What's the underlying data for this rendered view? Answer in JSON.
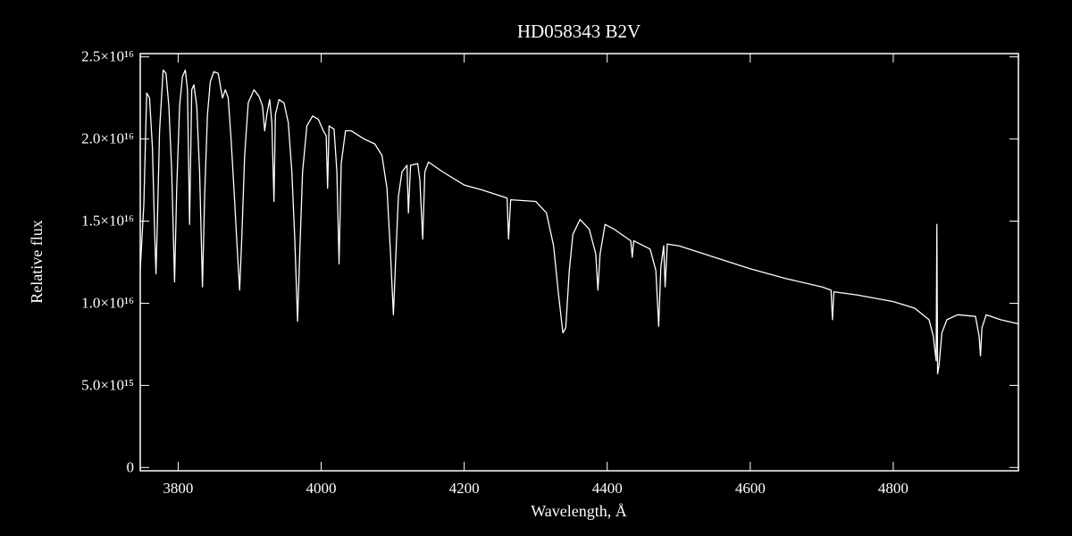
{
  "chart_data": {
    "type": "line",
    "title": "HD058343   B2V",
    "x_label": "Wavelength, Å",
    "y_label": "Relative flux",
    "color": "#ffffff",
    "background": "#000000",
    "xlim": [
      3747,
      4975
    ],
    "ylim": [
      -200000000000000.0,
      2.52e+16
    ],
    "xticks": [
      3800,
      4000,
      4200,
      4400,
      4600,
      4800
    ],
    "yticks": [
      0,
      {
        "value": 5000000000000000.0,
        "label": "5.0×10¹⁵"
      },
      {
        "value": 1e+16,
        "label": "1.0×10¹⁶"
      },
      {
        "value": 1.5e+16,
        "label": "1.5×10¹⁶"
      },
      {
        "value": 2e+16,
        "label": "2.0×10¹⁶"
      },
      {
        "value": 2.5e+16,
        "label": "2.5×10¹⁶"
      }
    ],
    "x": [
      3747,
      3752,
      3756,
      3760,
      3764,
      3767,
      3769,
      3771,
      3774,
      3779,
      3783,
      3787,
      3791,
      3795,
      3798,
      3802,
      3806,
      3810,
      3813,
      3816,
      3819,
      3822,
      3826,
      3830,
      3834,
      3837,
      3841,
      3845,
      3850,
      3856,
      3862,
      3866,
      3870,
      3874,
      3878,
      3883,
      3886,
      3889,
      3893,
      3898,
      3906,
      3913,
      3918,
      3921,
      3924,
      3928,
      3931,
      3934,
      3936,
      3941,
      3948,
      3954,
      3959,
      3963,
      3967,
      3970,
      3974,
      3980,
      3988,
      3996,
      4003,
      4007,
      4009,
      4011,
      4018,
      4022,
      4025,
      4028,
      4034,
      4042,
      4060,
      4075,
      4085,
      4092,
      4097,
      4101,
      4104,
      4108,
      4113,
      4120,
      4122,
      4125,
      4135,
      4138,
      4142,
      4145,
      4150,
      4170,
      4200,
      4225,
      4260,
      4262,
      4265,
      4300,
      4315,
      4325,
      4332,
      4338,
      4342,
      4347,
      4352,
      4362,
      4375,
      4384,
      4387,
      4390,
      4397,
      4410,
      4433,
      4435,
      4437,
      4460,
      4468,
      4472,
      4475,
      4479,
      4481,
      4484,
      4500,
      4550,
      4600,
      4650,
      4700,
      4713,
      4715,
      4717,
      4750,
      4800,
      4830,
      4850,
      4856,
      4860,
      4861,
      4862,
      4864,
      4868,
      4875,
      4890,
      4915,
      4920,
      4922,
      4924,
      4930,
      4950,
      4975
    ],
    "values": [
      1.21e+16,
      1.6e+16,
      2.28e+16,
      2.25e+16,
      1.95e+16,
      1.45e+16,
      1.18e+16,
      1.5e+16,
      2.05e+16,
      2.42e+16,
      2.4e+16,
      2.2e+16,
      1.8e+16,
      1.13e+16,
      1.7e+16,
      2.2e+16,
      2.38e+16,
      2.42e+16,
      2.3e+16,
      1.48e+16,
      2.3e+16,
      2.33e+16,
      2.2e+16,
      1.8e+16,
      1.1e+16,
      1.65e+16,
      2.15e+16,
      2.35e+16,
      2.41e+16,
      2.4e+16,
      2.25e+16,
      2.3e+16,
      2.25e+16,
      2e+16,
      1.7e+16,
      1.3e+16,
      1.08e+16,
      1.4e+16,
      1.9e+16,
      2.22e+16,
      2.3e+16,
      2.26e+16,
      2.2e+16,
      2.05e+16,
      2.15e+16,
      2.24e+16,
      2.1e+16,
      1.62e+16,
      2.15e+16,
      2.24e+16,
      2.22e+16,
      2.1e+16,
      1.8e+16,
      1.4e+16,
      8900000000000000.0,
      1.3e+16,
      1.8e+16,
      2.08e+16,
      2.14e+16,
      2.12e+16,
      2.05e+16,
      2.02e+16,
      1.7e+16,
      2.08e+16,
      2.06e+16,
      1.8e+16,
      1.24e+16,
      1.85e+16,
      2.05e+16,
      2.05e+16,
      2e+16,
      1.97e+16,
      1.9e+16,
      1.7e+16,
      1.3e+16,
      9300000000000000.0,
      1.25e+16,
      1.65e+16,
      1.8e+16,
      1.84e+16,
      1.55e+16,
      1.84e+16,
      1.85e+16,
      1.75e+16,
      1.39e+16,
      1.8e+16,
      1.86e+16,
      1.8e+16,
      1.72e+16,
      1.69e+16,
      1.64e+16,
      1.39e+16,
      1.63e+16,
      1.62e+16,
      1.55e+16,
      1.35e+16,
      1.05e+16,
      8200000000000000.0,
      8500000000000000.0,
      1.2e+16,
      1.42e+16,
      1.51e+16,
      1.45e+16,
      1.3e+16,
      1.08e+16,
      1.3e+16,
      1.48e+16,
      1.45e+16,
      1.38e+16,
      1.28e+16,
      1.38e+16,
      1.33e+16,
      1.2e+16,
      8600000000000000.0,
      1.22e+16,
      1.35e+16,
      1.1e+16,
      1.36e+16,
      1.35e+16,
      1.28e+16,
      1.21e+16,
      1.15e+16,
      1.1e+16,
      1.08e+16,
      9000000000000000.0,
      1.07e+16,
      1.05e+16,
      1.01e+16,
      9700000000000000.0,
      9000000000000000.0,
      8000000000000000.0,
      6500000000000000.0,
      1.48e+16,
      5700000000000000.0,
      6200000000000000.0,
      8200000000000000.0,
      9000000000000000.0,
      9300000000000000.0,
      9200000000000000.0,
      8000000000000000.0,
      6800000000000000.0,
      8500000000000000.0,
      9300000000000000.0,
      9000000000000000.0,
      8750000000000000.0
    ]
  }
}
